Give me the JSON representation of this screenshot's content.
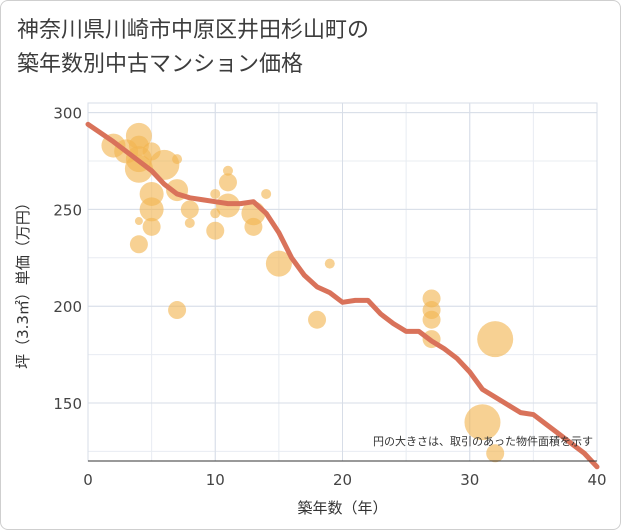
{
  "page": {
    "title_line1": "神奈川県川崎市中原区井田杉山町の",
    "title_line2": "築年数別中古マンション価格"
  },
  "colors": {
    "bubble": "#f2b450",
    "line": "#d9725a",
    "grid": "#d7dde7",
    "plot_bg": "#ffffff"
  },
  "chart_data": {
    "type": "scatter",
    "xlabel": "築年数（年）",
    "ylabel": "坪（3.3㎡）単価（万円）",
    "xlim": [
      0,
      40
    ],
    "ylim": [
      120,
      305
    ],
    "xticks": [
      0,
      10,
      20,
      30,
      40
    ],
    "yticks": [
      150,
      200,
      250,
      300
    ],
    "grid": true,
    "note": "円の大きさは、取引のあった物件面積を示す",
    "bubbles": [
      {
        "x": 2,
        "y": 283,
        "size": 12
      },
      {
        "x": 3,
        "y": 280,
        "size": 12
      },
      {
        "x": 4,
        "y": 288,
        "size": 13
      },
      {
        "x": 4,
        "y": 283,
        "size": 10
      },
      {
        "x": 4,
        "y": 276,
        "size": 13
      },
      {
        "x": 4,
        "y": 271,
        "size": 14
      },
      {
        "x": 4,
        "y": 244,
        "size": 4
      },
      {
        "x": 4,
        "y": 232,
        "size": 9
      },
      {
        "x": 5,
        "y": 280,
        "size": 9
      },
      {
        "x": 5,
        "y": 258,
        "size": 12
      },
      {
        "x": 5,
        "y": 250,
        "size": 12
      },
      {
        "x": 5,
        "y": 241,
        "size": 9
      },
      {
        "x": 6,
        "y": 273,
        "size": 15
      },
      {
        "x": 7,
        "y": 276,
        "size": 5
      },
      {
        "x": 7,
        "y": 260,
        "size": 11
      },
      {
        "x": 7,
        "y": 198,
        "size": 9
      },
      {
        "x": 8,
        "y": 250,
        "size": 9
      },
      {
        "x": 8,
        "y": 243,
        "size": 5
      },
      {
        "x": 10,
        "y": 258,
        "size": 5
      },
      {
        "x": 10,
        "y": 248,
        "size": 5
      },
      {
        "x": 10,
        "y": 239,
        "size": 9
      },
      {
        "x": 11,
        "y": 270,
        "size": 5
      },
      {
        "x": 11,
        "y": 264,
        "size": 9
      },
      {
        "x": 11,
        "y": 252,
        "size": 12
      },
      {
        "x": 13,
        "y": 248,
        "size": 12
      },
      {
        "x": 13,
        "y": 241,
        "size": 9
      },
      {
        "x": 14,
        "y": 258,
        "size": 5
      },
      {
        "x": 15,
        "y": 222,
        "size": 13
      },
      {
        "x": 18,
        "y": 193,
        "size": 9
      },
      {
        "x": 19,
        "y": 222,
        "size": 5
      },
      {
        "x": 27,
        "y": 204,
        "size": 9
      },
      {
        "x": 27,
        "y": 198,
        "size": 9
      },
      {
        "x": 27,
        "y": 193,
        "size": 9
      },
      {
        "x": 27,
        "y": 183,
        "size": 9
      },
      {
        "x": 31,
        "y": 140,
        "size": 18
      },
      {
        "x": 32,
        "y": 183,
        "size": 18
      },
      {
        "x": 32,
        "y": 124,
        "size": 9
      }
    ],
    "trend": {
      "x": [
        0,
        2,
        4,
        5,
        6,
        7,
        8,
        9,
        10,
        11,
        12,
        13,
        14,
        15,
        16,
        17,
        18,
        19,
        20,
        21,
        22,
        23,
        24,
        25,
        26,
        27,
        28,
        29,
        30,
        31,
        32,
        33,
        34,
        35,
        36,
        37,
        38,
        39,
        40
      ],
      "y": [
        294,
        285,
        275,
        270,
        263,
        258,
        256,
        255,
        254,
        253,
        253,
        254,
        248,
        238,
        225,
        216,
        210,
        207,
        202,
        203,
        203,
        196,
        191,
        187,
        187,
        182,
        178,
        173,
        166,
        157,
        153,
        149,
        145,
        144,
        139,
        134,
        129,
        124,
        117
      ]
    }
  }
}
